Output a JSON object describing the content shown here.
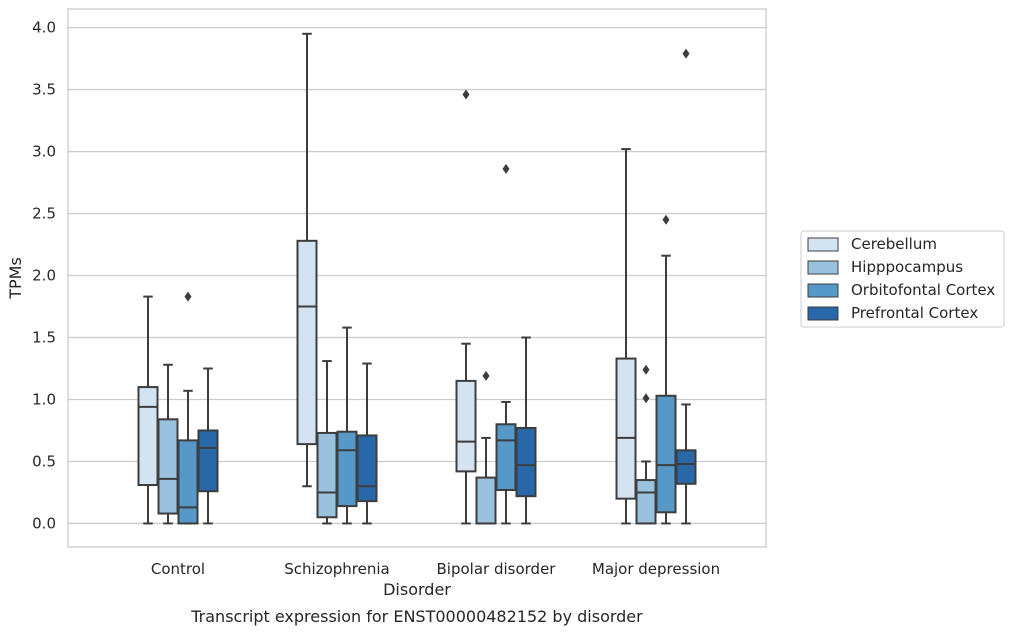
{
  "chart_data": {
    "type": "box",
    "xlabel": "Disorder",
    "ylabel": "TPMs",
    "caption": "Transcript expression for ENST00000482152 by disorder",
    "ylim": [
      -0.19,
      4.15
    ],
    "yticks": [
      "0.0",
      "0.5",
      "1.0",
      "1.5",
      "2.0",
      "2.5",
      "3.0",
      "3.5",
      "4.0"
    ],
    "grid": true,
    "legend_position": "right",
    "categories": [
      "Control",
      "Schizophrenia",
      "Bipolar disorder",
      "Major depression"
    ],
    "series": [
      {
        "name": "Cerebellum",
        "color": "#d4e3f2",
        "boxes": [
          {
            "whisker_low": 0.0,
            "q1": 0.31,
            "median": 0.94,
            "q3": 1.1,
            "whisker_high": 1.83,
            "outliers": []
          },
          {
            "whisker_low": 0.3,
            "q1": 0.64,
            "median": 1.75,
            "q3": 2.28,
            "whisker_high": 3.95,
            "outliers": []
          },
          {
            "whisker_low": 0.0,
            "q1": 0.42,
            "median": 0.66,
            "q3": 1.15,
            "whisker_high": 1.45,
            "outliers": [
              3.46
            ]
          },
          {
            "whisker_low": 0.0,
            "q1": 0.2,
            "median": 0.69,
            "q3": 1.33,
            "whisker_high": 3.02,
            "outliers": []
          }
        ]
      },
      {
        "name": "Hipppocampus",
        "color": "#98c2dd",
        "boxes": [
          {
            "whisker_low": 0.0,
            "q1": 0.08,
            "median": 0.36,
            "q3": 0.84,
            "whisker_high": 1.28,
            "outliers": []
          },
          {
            "whisker_low": 0.0,
            "q1": 0.05,
            "median": 0.25,
            "q3": 0.73,
            "whisker_high": 1.31,
            "outliers": []
          },
          {
            "whisker_low": 0.0,
            "q1": 0.0,
            "median": 0.0,
            "q3": 0.37,
            "whisker_high": 0.69,
            "outliers": [
              1.19
            ]
          },
          {
            "whisker_low": 0.0,
            "q1": 0.0,
            "median": 0.25,
            "q3": 0.35,
            "whisker_high": 0.5,
            "outliers": [
              1.24,
              1.01
            ]
          }
        ]
      },
      {
        "name": "Orbitofontal Cortex",
        "color": "#5698c7",
        "boxes": [
          {
            "whisker_low": 0.0,
            "q1": 0.0,
            "median": 0.13,
            "q3": 0.67,
            "whisker_high": 1.07,
            "outliers": [
              1.83
            ]
          },
          {
            "whisker_low": 0.0,
            "q1": 0.14,
            "median": 0.59,
            "q3": 0.74,
            "whisker_high": 1.58,
            "outliers": []
          },
          {
            "whisker_low": 0.0,
            "q1": 0.27,
            "median": 0.67,
            "q3": 0.8,
            "whisker_high": 0.98,
            "outliers": [
              2.86
            ]
          },
          {
            "whisker_low": 0.0,
            "q1": 0.09,
            "median": 0.47,
            "q3": 1.03,
            "whisker_high": 2.16,
            "outliers": [
              2.45
            ]
          }
        ]
      },
      {
        "name": "Prefrontal Cortex",
        "color": "#2868a8",
        "boxes": [
          {
            "whisker_low": 0.0,
            "q1": 0.26,
            "median": 0.61,
            "q3": 0.75,
            "whisker_high": 1.25,
            "outliers": []
          },
          {
            "whisker_low": 0.0,
            "q1": 0.18,
            "median": 0.3,
            "q3": 0.71,
            "whisker_high": 1.29,
            "outliers": []
          },
          {
            "whisker_low": 0.0,
            "q1": 0.22,
            "median": 0.47,
            "q3": 0.77,
            "whisker_high": 1.5,
            "outliers": []
          },
          {
            "whisker_low": 0.0,
            "q1": 0.32,
            "median": 0.48,
            "q3": 0.59,
            "whisker_high": 0.96,
            "outliers": [
              3.79
            ]
          }
        ]
      }
    ]
  }
}
